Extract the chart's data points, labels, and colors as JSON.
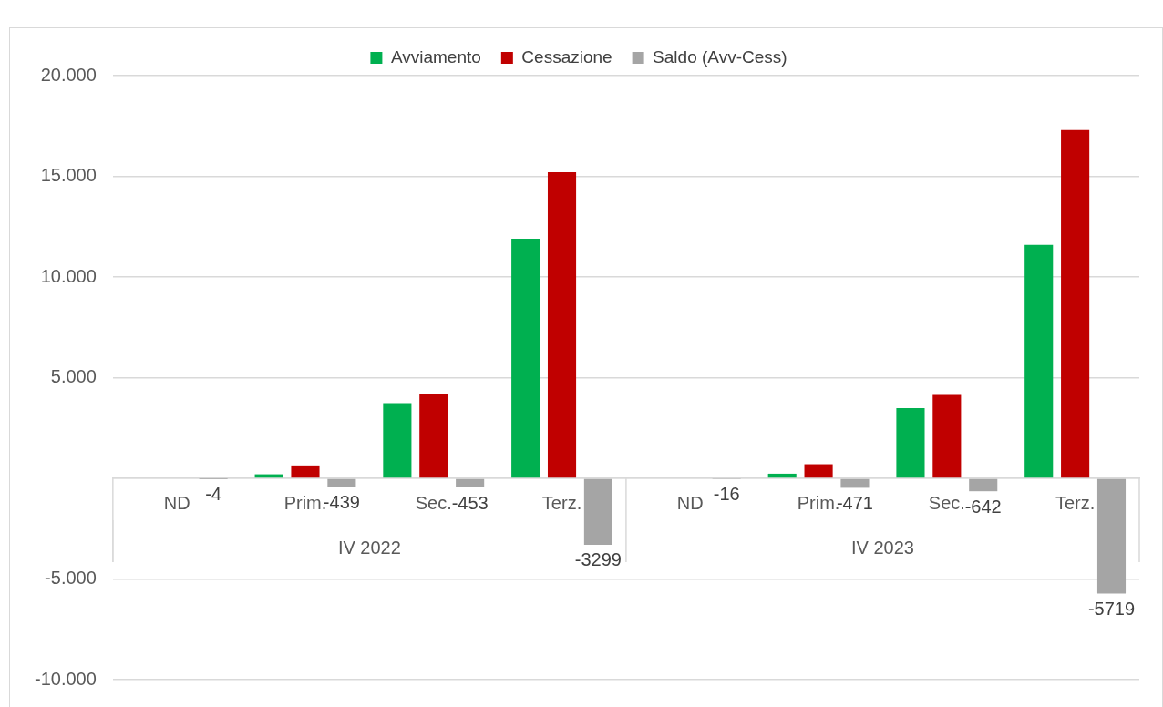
{
  "chart_data": {
    "type": "bar",
    "categories": [
      "ND",
      "Prim.",
      "Sec.",
      "Terz.",
      "ND",
      "Prim.",
      "Sec.",
      "Terz."
    ],
    "series": [
      {
        "name": "Avviamento",
        "color": "#00b050",
        "values": [
          0,
          200,
          3730,
          11900,
          0,
          230,
          3480,
          11600
        ]
      },
      {
        "name": "Cessazione",
        "color": "#c00000",
        "values": [
          0,
          640,
          4180,
          15200,
          0,
          700,
          4140,
          17300
        ]
      },
      {
        "name": "Saldo (Avv-Cess)",
        "color": "#a5a5a5",
        "values": [
          -4,
          -439,
          -453,
          -3299,
          -16,
          -471,
          -642,
          -5719
        ],
        "value_labels": [
          "-4",
          "-439",
          "-453",
          "-3299",
          "-16",
          "-471",
          "-642",
          "-5719"
        ]
      }
    ],
    "annotations": [
      "IV 2022",
      "IV 2023"
    ],
    "ylim": [
      -10000,
      20000
    ],
    "yticks": [
      {
        "value": -10000,
        "label": "-10.000"
      },
      {
        "value": -5000,
        "label": "-5.000"
      },
      {
        "value": 0,
        "label": null
      },
      {
        "value": 5000,
        "label": "5.000"
      },
      {
        "value": 10000,
        "label": "10.000"
      },
      {
        "value": 15000,
        "label": "15.000"
      },
      {
        "value": 20000,
        "label": "20.000"
      }
    ],
    "grid": "y",
    "legend": "top"
  }
}
